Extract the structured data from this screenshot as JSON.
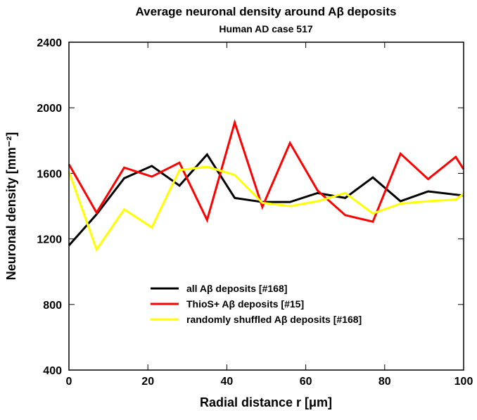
{
  "chart_data": {
    "type": "line",
    "title": "Average neuronal density around Aβ deposits",
    "subtitle": "Human AD case 517",
    "xlabel": "Radial distance r [μm]",
    "ylabel": "Neuronal density [mm⁻²]",
    "xlim": [
      0,
      100
    ],
    "ylim": [
      400,
      2400
    ],
    "xticks": [
      0,
      20,
      40,
      60,
      80,
      100
    ],
    "yticks": [
      400,
      800,
      1200,
      1600,
      2000,
      2400
    ],
    "xtick_labels": [
      "0",
      "20",
      "40",
      "60",
      "80",
      "100"
    ],
    "ytick_labels": [
      "400",
      "800",
      "1200",
      "1600",
      "2000",
      "2400"
    ],
    "grid": false,
    "legend_position": "lower-center",
    "x": [
      0,
      7,
      14,
      21,
      28,
      35,
      42,
      49,
      56,
      63,
      70,
      77,
      84,
      91,
      98,
      100
    ],
    "series": [
      {
        "name": "all Aβ deposits [#168]",
        "color": "#000000",
        "values": [
          1160,
          1350,
          1570,
          1645,
          1525,
          1715,
          1450,
          1425,
          1425,
          1480,
          1450,
          1575,
          1430,
          1490,
          1470,
          1465
        ]
      },
      {
        "name": "ThioS+ Aβ deposits [#15]",
        "color": "#ff0000",
        "values": [
          1655,
          1360,
          1635,
          1580,
          1665,
          1315,
          1910,
          1395,
          1785,
          1495,
          1345,
          1305,
          1720,
          1565,
          1700,
          1625
        ]
      },
      {
        "name": "randomly shuffled Aβ deposits [#168]",
        "color": "#ffff00",
        "values": [
          1610,
          1135,
          1380,
          1270,
          1620,
          1640,
          1590,
          1420,
          1400,
          1430,
          1480,
          1355,
          1415,
          1430,
          1440,
          1475
        ]
      }
    ]
  }
}
